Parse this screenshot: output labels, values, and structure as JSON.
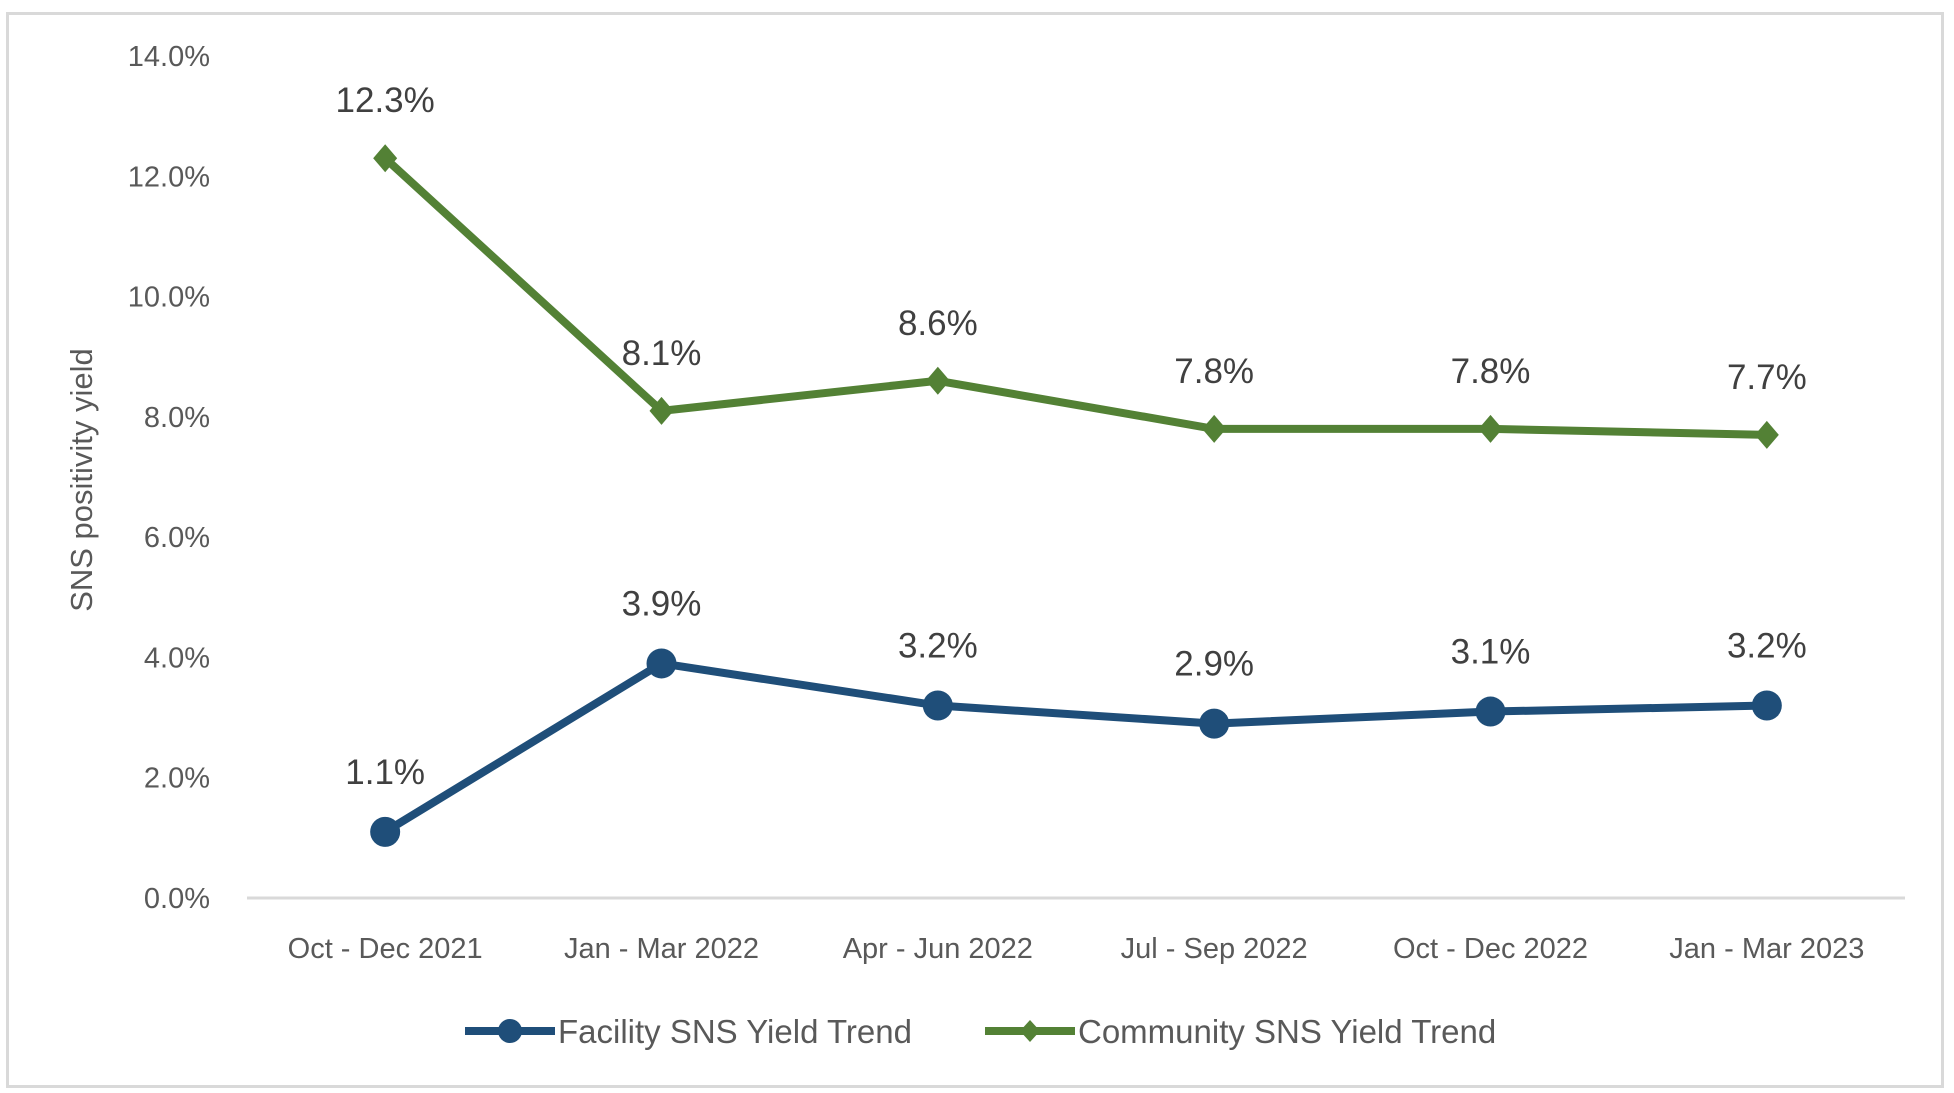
{
  "chart_data": {
    "type": "line",
    "title": "",
    "xlabel": "",
    "ylabel": "SNS positivity yield",
    "ylim": [
      0,
      14
    ],
    "y_ticks": [
      "0.0%",
      "2.0%",
      "4.0%",
      "6.0%",
      "8.0%",
      "10.0%",
      "12.0%",
      "14.0%"
    ],
    "y_tick_values": [
      0,
      2,
      4,
      6,
      8,
      10,
      12,
      14
    ],
    "grid": false,
    "legend_position": "bottom",
    "categories": [
      "Oct - Dec 2021",
      "Jan - Mar 2022",
      "Apr - Jun 2022",
      "Jul - Sep 2022",
      "Oct - Dec 2022",
      "Jan - Mar 2023"
    ],
    "series": [
      {
        "name": "Facility SNS Yield Trend",
        "color": "#1f4e79",
        "marker": "circle",
        "values": [
          1.1,
          3.9,
          3.2,
          2.9,
          3.1,
          3.2
        ],
        "labels": [
          "1.1%",
          "3.9%",
          "3.2%",
          "2.9%",
          "3.1%",
          "3.2%"
        ]
      },
      {
        "name": "Community SNS Yield Trend",
        "color": "#538135",
        "marker": "diamond",
        "values": [
          12.3,
          8.1,
          8.6,
          7.8,
          7.8,
          7.7
        ],
        "labels": [
          "12.3%",
          "8.1%",
          "8.6%",
          "7.8%",
          "7.8%",
          "7.7%"
        ]
      }
    ]
  }
}
